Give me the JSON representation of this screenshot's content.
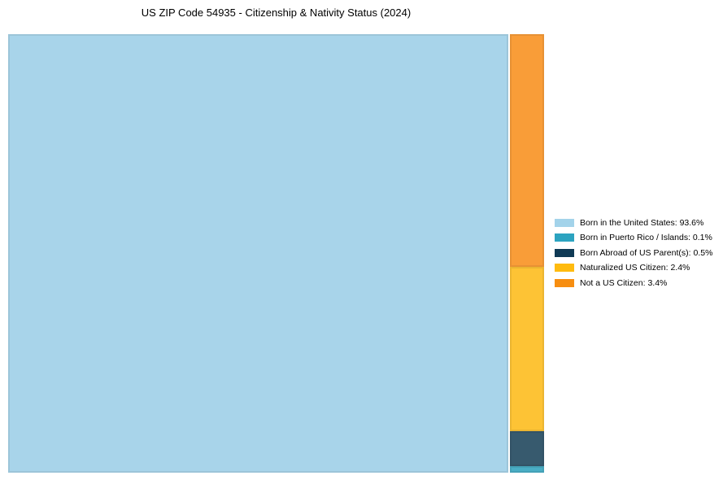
{
  "title": "US ZIP Code 54935 - Citizenship & Nativity Status (2024)",
  "chart_data": {
    "type": "treemap",
    "title": "US ZIP Code 54935 - Citizenship & Nativity Status (2024)",
    "unit": "%",
    "categories": [
      "Born in the United States",
      "Born in Puerto Rico / Islands",
      "Born Abroad of US Parent(s)",
      "Naturalized US Citizen",
      "Not a US Citizen"
    ],
    "values": [
      93.6,
      0.1,
      0.5,
      2.4,
      3.4
    ],
    "main_cell_index": 0,
    "stack_order": [
      4,
      3,
      2,
      1
    ],
    "legend_position": "right-center",
    "background_color": "#ffffff",
    "cell_colors": [
      "#A8D4EA",
      "#4AAEC5",
      "#375A6E",
      "#FDC335",
      "#F99D38"
    ],
    "legend_colors": [
      "#A3D3EA",
      "#2CA3C0",
      "#0F3A55",
      "#FFBB0F",
      "#F78E11"
    ]
  },
  "legend": {
    "items": [
      {
        "id": "born-in-us",
        "label": "Born in the United States",
        "value": "93.6%",
        "text": "Born in the United States: 93.6%",
        "swatch_color": "#A3D3EA",
        "cell_color": "#A8D4EA"
      },
      {
        "id": "puerto-rico",
        "label": "Born in Puerto Rico / Islands",
        "value": "0.1%",
        "text": "Born in Puerto Rico / Islands: 0.1%",
        "swatch_color": "#2CA3C0",
        "cell_color": "#4AAEC5"
      },
      {
        "id": "born-abroad",
        "label": "Born Abroad of US Parent(s)",
        "value": "0.5%",
        "text": "Born Abroad of US Parent(s): 0.5%",
        "swatch_color": "#0F3A55",
        "cell_color": "#375A6E"
      },
      {
        "id": "naturalized",
        "label": "Naturalized US Citizen",
        "value": "2.4%",
        "text": "Naturalized US Citizen: 2.4%",
        "swatch_color": "#FFBB0F",
        "cell_color": "#FDC335"
      },
      {
        "id": "not-citizen",
        "label": "Not a US Citizen",
        "value": "3.4%",
        "text": "Not a US Citizen: 3.4%",
        "swatch_color": "#F78E11",
        "cell_color": "#F99D38"
      }
    ],
    "cell_id_by_category_index": [
      "born-in-us",
      "puerto-rico",
      "born-abroad",
      "naturalized",
      "not-citizen"
    ]
  }
}
